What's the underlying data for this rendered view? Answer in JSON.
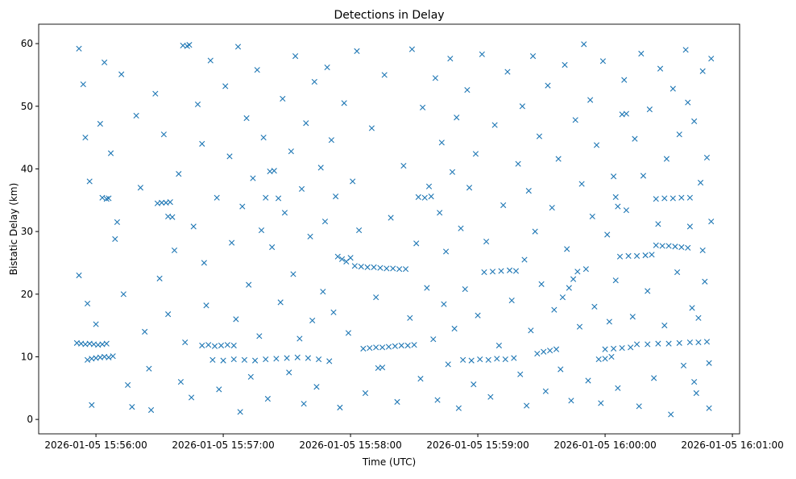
{
  "chart_data": {
    "type": "scatter",
    "title": "Detections in Delay",
    "xlabel": "Time (UTC)",
    "ylabel": "Bistatic Delay (km)",
    "x_unit": "seconds since 2026-01-05 15:55:00",
    "xlim": [
      33,
      363.4
    ],
    "ylim": [
      -2.3,
      63.1
    ],
    "grid": false,
    "marker": "x",
    "color": "#1f77b4",
    "x_ticks": [
      {
        "value": 60,
        "label": "2026-01-05 15:56:00"
      },
      {
        "value": 120,
        "label": "2026-01-05 15:57:00"
      },
      {
        "value": 180,
        "label": "2026-01-05 15:58:00"
      },
      {
        "value": 240,
        "label": "2026-01-05 15:59:00"
      },
      {
        "value": 300,
        "label": "2026-01-05 16:00:00"
      },
      {
        "value": 360,
        "label": "2026-01-05 16:01:00"
      }
    ],
    "y_ticks": [
      {
        "value": 0,
        "label": "0"
      },
      {
        "value": 10,
        "label": "10"
      },
      {
        "value": 20,
        "label": "20"
      },
      {
        "value": 30,
        "label": "30"
      },
      {
        "value": 40,
        "label": "40"
      },
      {
        "value": 50,
        "label": "50"
      },
      {
        "value": 60,
        "label": "60"
      }
    ],
    "points": [
      [
        51,
        12.2
      ],
      [
        53,
        12.1
      ],
      [
        55,
        12.0
      ],
      [
        57,
        12.1
      ],
      [
        59,
        12.0
      ],
      [
        61,
        11.9
      ],
      [
        63,
        12.0
      ],
      [
        65,
        12.1
      ],
      [
        56,
        9.5
      ],
      [
        58,
        9.7
      ],
      [
        60,
        9.8
      ],
      [
        62,
        9.9
      ],
      [
        64,
        10.0
      ],
      [
        66,
        9.9
      ],
      [
        68,
        10.1
      ],
      [
        63,
        35.4
      ],
      [
        65,
        35.2
      ],
      [
        66,
        35.3
      ],
      [
        89,
        34.5
      ],
      [
        91,
        34.6
      ],
      [
        93,
        34.6
      ],
      [
        95,
        34.7
      ],
      [
        94,
        32.4
      ],
      [
        96,
        32.3
      ],
      [
        101,
        59.7
      ],
      [
        103,
        59.6
      ],
      [
        104,
        59.8
      ],
      [
        110,
        11.8
      ],
      [
        113,
        11.9
      ],
      [
        116,
        11.7
      ],
      [
        119,
        11.8
      ],
      [
        122,
        11.9
      ],
      [
        125,
        11.8
      ],
      [
        115,
        9.5
      ],
      [
        120,
        9.4
      ],
      [
        125,
        9.6
      ],
      [
        130,
        9.5
      ],
      [
        135,
        9.4
      ],
      [
        140,
        9.6
      ],
      [
        145,
        9.7
      ],
      [
        150,
        9.8
      ],
      [
        155,
        9.9
      ],
      [
        160,
        9.8
      ],
      [
        165,
        9.6
      ],
      [
        142,
        39.6
      ],
      [
        144,
        39.7
      ],
      [
        140,
        35.4
      ],
      [
        146,
        35.3
      ],
      [
        174,
        26.0
      ],
      [
        176,
        25.6
      ],
      [
        178,
        25.2
      ],
      [
        180,
        25.8
      ],
      [
        182,
        24.5
      ],
      [
        185,
        24.4
      ],
      [
        188,
        24.3
      ],
      [
        191,
        24.3
      ],
      [
        194,
        24.2
      ],
      [
        197,
        24.1
      ],
      [
        200,
        24.1
      ],
      [
        203,
        24.0
      ],
      [
        206,
        24.0
      ],
      [
        186,
        11.3
      ],
      [
        189,
        11.4
      ],
      [
        192,
        11.5
      ],
      [
        195,
        11.5
      ],
      [
        198,
        11.6
      ],
      [
        201,
        11.7
      ],
      [
        204,
        11.8
      ],
      [
        207,
        11.8
      ],
      [
        210,
        11.9
      ],
      [
        193,
        8.2
      ],
      [
        195,
        8.3
      ],
      [
        212,
        35.5
      ],
      [
        215,
        35.4
      ],
      [
        218,
        35.6
      ],
      [
        233,
        9.5
      ],
      [
        237,
        9.4
      ],
      [
        241,
        9.6
      ],
      [
        245,
        9.5
      ],
      [
        249,
        9.7
      ],
      [
        253,
        9.6
      ],
      [
        257,
        9.8
      ],
      [
        243,
        23.5
      ],
      [
        247,
        23.6
      ],
      [
        251,
        23.7
      ],
      [
        255,
        23.8
      ],
      [
        258,
        23.7
      ],
      [
        268,
        10.5
      ],
      [
        271,
        10.8
      ],
      [
        274,
        11.0
      ],
      [
        277,
        11.2
      ],
      [
        280,
        19.5
      ],
      [
        283,
        21.0
      ],
      [
        285,
        22.4
      ],
      [
        287,
        23.6
      ],
      [
        297,
        9.6
      ],
      [
        300,
        9.7
      ],
      [
        303,
        10.0
      ],
      [
        300,
        11.2
      ],
      [
        304,
        11.3
      ],
      [
        308,
        11.4
      ],
      [
        312,
        11.5
      ],
      [
        307,
        26.0
      ],
      [
        311,
        26.1
      ],
      [
        315,
        26.1
      ],
      [
        319,
        26.2
      ],
      [
        322,
        26.3
      ],
      [
        324,
        27.8
      ],
      [
        327,
        27.7
      ],
      [
        330,
        27.7
      ],
      [
        333,
        27.6
      ],
      [
        336,
        27.5
      ],
      [
        339,
        27.4
      ],
      [
        315,
        12.0
      ],
      [
        320,
        12.0
      ],
      [
        325,
        12.1
      ],
      [
        330,
        12.1
      ],
      [
        335,
        12.2
      ],
      [
        340,
        12.3
      ],
      [
        344,
        12.3
      ],
      [
        348,
        12.4
      ],
      [
        324,
        35.2
      ],
      [
        328,
        35.3
      ],
      [
        332,
        35.3
      ],
      [
        336,
        35.4
      ],
      [
        340,
        35.4
      ],
      [
        308,
        48.7
      ],
      [
        310,
        48.8
      ],
      [
        305,
        35.5
      ],
      [
        306,
        34.0
      ],
      [
        52,
        59.2
      ],
      [
        54,
        53.5
      ],
      [
        55,
        45.0
      ],
      [
        57,
        38.0
      ],
      [
        52,
        23.0
      ],
      [
        56,
        18.5
      ],
      [
        60,
        15.2
      ],
      [
        62,
        47.2
      ],
      [
        64,
        57.0
      ],
      [
        58,
        2.3
      ],
      [
        67,
        42.5
      ],
      [
        69,
        28.8
      ],
      [
        70,
        31.5
      ],
      [
        72,
        55.1
      ],
      [
        73,
        20.0
      ],
      [
        75,
        5.5
      ],
      [
        77,
        2.0
      ],
      [
        79,
        48.5
      ],
      [
        81,
        37.0
      ],
      [
        83,
        14.0
      ],
      [
        85,
        8.1
      ],
      [
        86,
        1.5
      ],
      [
        88,
        52.0
      ],
      [
        90,
        22.5
      ],
      [
        92,
        45.5
      ],
      [
        94,
        16.8
      ],
      [
        97,
        27.0
      ],
      [
        99,
        39.2
      ],
      [
        100,
        6.0
      ],
      [
        102,
        12.3
      ],
      [
        105,
        3.5
      ],
      [
        106,
        30.8
      ],
      [
        108,
        50.3
      ],
      [
        110,
        44.0
      ],
      [
        111,
        25.0
      ],
      [
        112,
        18.2
      ],
      [
        114,
        57.3
      ],
      [
        117,
        35.4
      ],
      [
        118,
        4.8
      ],
      [
        121,
        53.2
      ],
      [
        123,
        42.0
      ],
      [
        124,
        28.2
      ],
      [
        126,
        16.0
      ],
      [
        127,
        59.5
      ],
      [
        128,
        1.2
      ],
      [
        129,
        34.0
      ],
      [
        131,
        48.1
      ],
      [
        132,
        21.5
      ],
      [
        133,
        6.8
      ],
      [
        134,
        38.5
      ],
      [
        136,
        55.8
      ],
      [
        137,
        13.3
      ],
      [
        138,
        30.2
      ],
      [
        139,
        45.0
      ],
      [
        141,
        3.3
      ],
      [
        143,
        27.5
      ],
      [
        147,
        18.7
      ],
      [
        148,
        51.2
      ],
      [
        149,
        33.0
      ],
      [
        151,
        7.5
      ],
      [
        152,
        42.8
      ],
      [
        153,
        23.2
      ],
      [
        154,
        58.0
      ],
      [
        156,
        12.9
      ],
      [
        157,
        36.8
      ],
      [
        158,
        2.5
      ],
      [
        159,
        47.3
      ],
      [
        161,
        29.2
      ],
      [
        162,
        15.8
      ],
      [
        163,
        53.9
      ],
      [
        164,
        5.2
      ],
      [
        166,
        40.2
      ],
      [
        167,
        20.4
      ],
      [
        168,
        31.6
      ],
      [
        169,
        56.2
      ],
      [
        170,
        9.3
      ],
      [
        171,
        44.6
      ],
      [
        172,
        17.1
      ],
      [
        173,
        35.6
      ],
      [
        175,
        1.9
      ],
      [
        177,
        50.5
      ],
      [
        179,
        13.8
      ],
      [
        181,
        38.0
      ],
      [
        183,
        58.8
      ],
      [
        184,
        30.2
      ],
      [
        187,
        4.2
      ],
      [
        190,
        46.5
      ],
      [
        192,
        19.5
      ],
      [
        196,
        55.0
      ],
      [
        199,
        32.2
      ],
      [
        202,
        2.8
      ],
      [
        205,
        40.5
      ],
      [
        208,
        16.2
      ],
      [
        209,
        59.1
      ],
      [
        211,
        28.1
      ],
      [
        213,
        6.5
      ],
      [
        214,
        49.8
      ],
      [
        216,
        21.0
      ],
      [
        217,
        37.2
      ],
      [
        219,
        12.8
      ],
      [
        220,
        54.5
      ],
      [
        221,
        3.1
      ],
      [
        222,
        33.0
      ],
      [
        223,
        44.2
      ],
      [
        224,
        18.4
      ],
      [
        225,
        26.8
      ],
      [
        226,
        8.8
      ],
      [
        227,
        57.6
      ],
      [
        228,
        39.5
      ],
      [
        229,
        14.5
      ],
      [
        230,
        48.2
      ],
      [
        231,
        1.8
      ],
      [
        232,
        30.5
      ],
      [
        234,
        20.8
      ],
      [
        235,
        52.6
      ],
      [
        236,
        37.0
      ],
      [
        238,
        5.6
      ],
      [
        239,
        42.4
      ],
      [
        240,
        16.6
      ],
      [
        242,
        58.3
      ],
      [
        244,
        28.4
      ],
      [
        246,
        3.6
      ],
      [
        248,
        47.0
      ],
      [
        250,
        11.8
      ],
      [
        252,
        34.2
      ],
      [
        254,
        55.5
      ],
      [
        256,
        19.0
      ],
      [
        259,
        40.8
      ],
      [
        260,
        7.2
      ],
      [
        261,
        50.0
      ],
      [
        262,
        25.5
      ],
      [
        263,
        2.2
      ],
      [
        264,
        36.5
      ],
      [
        265,
        14.2
      ],
      [
        266,
        58.0
      ],
      [
        267,
        30.0
      ],
      [
        269,
        45.2
      ],
      [
        270,
        21.6
      ],
      [
        272,
        4.5
      ],
      [
        273,
        53.3
      ],
      [
        275,
        33.8
      ],
      [
        276,
        17.5
      ],
      [
        278,
        41.6
      ],
      [
        279,
        8.0
      ],
      [
        281,
        56.6
      ],
      [
        282,
        27.2
      ],
      [
        284,
        3.0
      ],
      [
        286,
        47.8
      ],
      [
        288,
        14.8
      ],
      [
        289,
        37.6
      ],
      [
        290,
        59.9
      ],
      [
        291,
        24.0
      ],
      [
        292,
        6.2
      ],
      [
        293,
        51.0
      ],
      [
        294,
        32.4
      ],
      [
        295,
        18.0
      ],
      [
        296,
        43.8
      ],
      [
        298,
        2.6
      ],
      [
        299,
        57.2
      ],
      [
        301,
        29.5
      ],
      [
        302,
        15.6
      ],
      [
        304,
        38.8
      ],
      [
        305,
        22.2
      ],
      [
        306,
        5.0
      ],
      [
        309,
        54.2
      ],
      [
        310,
        33.4
      ],
      [
        313,
        16.4
      ],
      [
        314,
        44.8
      ],
      [
        316,
        2.1
      ],
      [
        317,
        58.4
      ],
      [
        318,
        38.9
      ],
      [
        320,
        20.5
      ],
      [
        321,
        49.5
      ],
      [
        323,
        6.6
      ],
      [
        325,
        31.2
      ],
      [
        326,
        56.0
      ],
      [
        328,
        15.0
      ],
      [
        329,
        41.6
      ],
      [
        331,
        0.8
      ],
      [
        332,
        52.8
      ],
      [
        334,
        23.5
      ],
      [
        335,
        45.5
      ],
      [
        337,
        8.6
      ],
      [
        338,
        59.0
      ],
      [
        340,
        30.8
      ],
      [
        341,
        17.8
      ],
      [
        342,
        47.6
      ],
      [
        343,
        4.2
      ],
      [
        345,
        37.8
      ],
      [
        346,
        55.6
      ],
      [
        347,
        22.0
      ],
      [
        348,
        41.8
      ],
      [
        349,
        9.0
      ],
      [
        350,
        31.6
      ],
      [
        350,
        57.6
      ],
      [
        349,
        1.8
      ],
      [
        344,
        16.2
      ],
      [
        346,
        27.0
      ],
      [
        342,
        6.0
      ],
      [
        339,
        50.6
      ]
    ]
  }
}
